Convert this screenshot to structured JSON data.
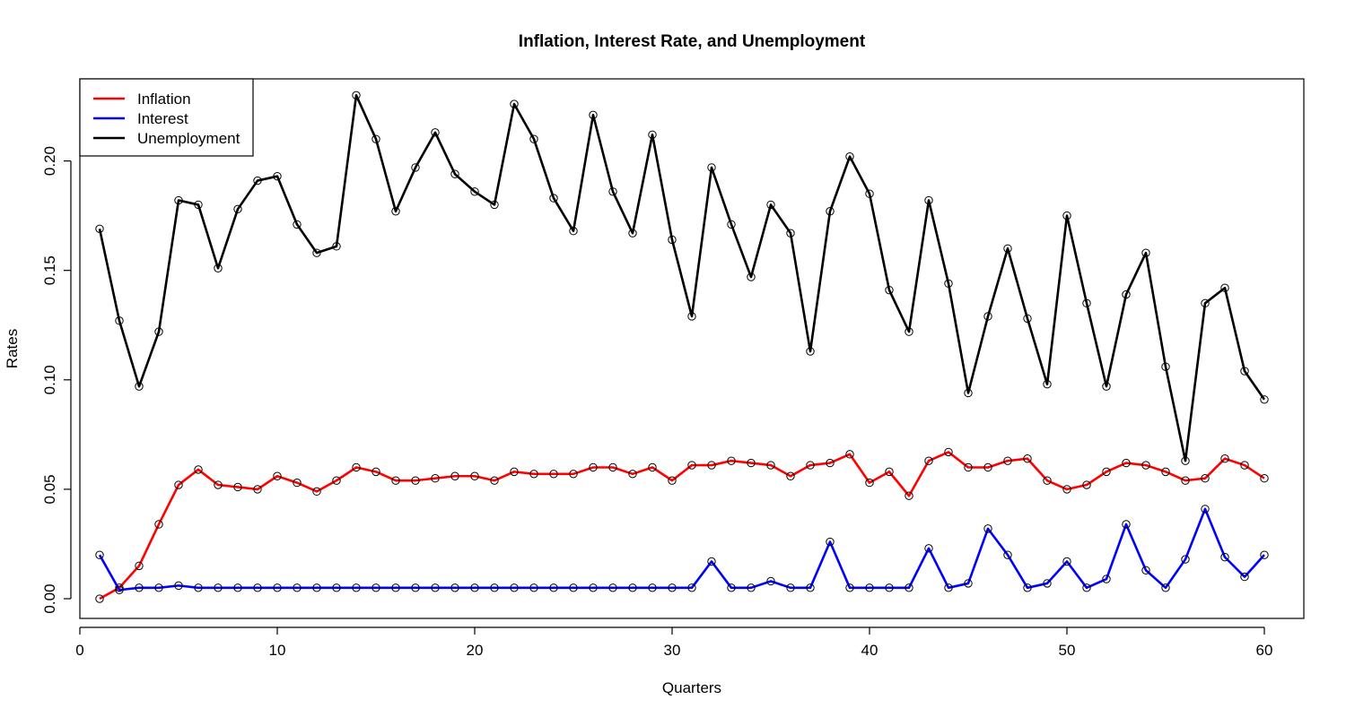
{
  "chart_data": {
    "type": "line",
    "title": "Inflation, Interest Rate, and Unemployment",
    "xlabel": "Quarters",
    "ylabel": "Rates",
    "xlim": [
      0,
      62
    ],
    "ylim": [
      -0.009,
      0.2375
    ],
    "xticks": [
      0,
      10,
      20,
      30,
      40,
      50,
      60
    ],
    "yticks": [
      0.0,
      0.05,
      0.1,
      0.15,
      0.2
    ],
    "ytick_labels": [
      "0.00",
      "0.05",
      "0.10",
      "0.15",
      "0.20"
    ],
    "grid": false,
    "legend_position": "top-left",
    "markers": "open-circle",
    "x": [
      1,
      2,
      3,
      4,
      5,
      6,
      7,
      8,
      9,
      10,
      11,
      12,
      13,
      14,
      15,
      16,
      17,
      18,
      19,
      20,
      21,
      22,
      23,
      24,
      25,
      26,
      27,
      28,
      29,
      30,
      31,
      32,
      33,
      34,
      35,
      36,
      37,
      38,
      39,
      40,
      41,
      42,
      43,
      44,
      45,
      46,
      47,
      48,
      49,
      50,
      51,
      52,
      53,
      54,
      55,
      56,
      57,
      58,
      59,
      60
    ],
    "series": [
      {
        "name": "Inflation",
        "color": "#ff0000",
        "values": [
          0.0,
          0.005,
          0.015,
          0.034,
          0.052,
          0.059,
          0.052,
          0.051,
          0.05,
          0.056,
          0.053,
          0.049,
          0.054,
          0.06,
          0.058,
          0.054,
          0.054,
          0.055,
          0.056,
          0.056,
          0.054,
          0.058,
          0.057,
          0.057,
          0.057,
          0.06,
          0.06,
          0.057,
          0.06,
          0.054,
          0.061,
          0.061,
          0.063,
          0.062,
          0.061,
          0.056,
          0.061,
          0.062,
          0.066,
          0.053,
          0.058,
          0.047,
          0.063,
          0.067,
          0.06,
          0.06,
          0.063,
          0.064,
          0.054,
          0.05,
          0.052,
          0.058,
          0.062,
          0.061,
          0.058,
          0.054,
          0.055,
          0.064,
          0.061,
          0.055
        ]
      },
      {
        "name": "Interest",
        "color": "#0000ff",
        "values": [
          0.02,
          0.004,
          0.005,
          0.005,
          0.006,
          0.005,
          0.005,
          0.005,
          0.005,
          0.005,
          0.005,
          0.005,
          0.005,
          0.005,
          0.005,
          0.005,
          0.005,
          0.005,
          0.005,
          0.005,
          0.005,
          0.005,
          0.005,
          0.005,
          0.005,
          0.005,
          0.005,
          0.005,
          0.005,
          0.005,
          0.005,
          0.017,
          0.005,
          0.005,
          0.008,
          0.005,
          0.005,
          0.026,
          0.005,
          0.005,
          0.005,
          0.005,
          0.023,
          0.005,
          0.007,
          0.032,
          0.02,
          0.005,
          0.007,
          0.017,
          0.005,
          0.009,
          0.034,
          0.013,
          0.005,
          0.018,
          0.041,
          0.019,
          0.01,
          0.02
        ]
      },
      {
        "name": "Unemployment",
        "color": "#000000",
        "values": [
          0.169,
          0.127,
          0.097,
          0.122,
          0.182,
          0.18,
          0.151,
          0.178,
          0.191,
          0.193,
          0.171,
          0.158,
          0.161,
          0.23,
          0.21,
          0.177,
          0.197,
          0.213,
          0.194,
          0.186,
          0.18,
          0.226,
          0.21,
          0.183,
          0.168,
          0.221,
          0.186,
          0.167,
          0.212,
          0.164,
          0.129,
          0.197,
          0.171,
          0.147,
          0.18,
          0.167,
          0.113,
          0.177,
          0.202,
          0.185,
          0.141,
          0.122,
          0.182,
          0.144,
          0.094,
          0.129,
          0.16,
          0.128,
          0.098,
          0.175,
          0.135,
          0.097,
          0.139,
          0.158,
          0.106,
          0.063,
          0.135,
          0.142,
          0.104,
          0.091
        ]
      }
    ]
  }
}
